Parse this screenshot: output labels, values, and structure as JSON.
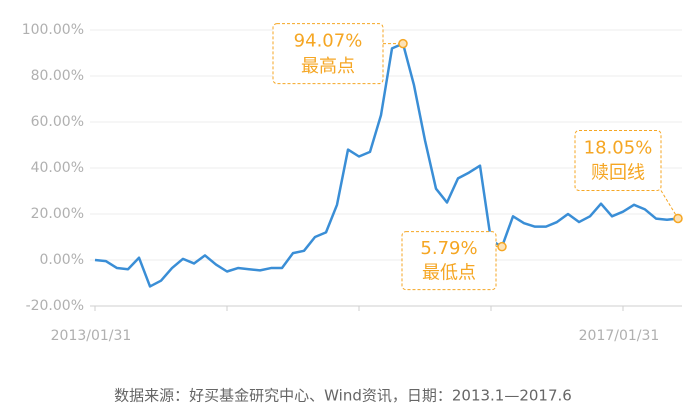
{
  "chart_data": {
    "type": "line",
    "categories": [
      "2013/01/31",
      null,
      null,
      null,
      null,
      null,
      null,
      null,
      null,
      null,
      null,
      null,
      null,
      null,
      null,
      null,
      null,
      null,
      null,
      null,
      null,
      null,
      null,
      null,
      null,
      null,
      null,
      null,
      null,
      null,
      null,
      null,
      null,
      null,
      null,
      null,
      null,
      null,
      null,
      null,
      null,
      null,
      null,
      null,
      null,
      null,
      null,
      null,
      "2017/01/31",
      null,
      null,
      null,
      null,
      null
    ],
    "series": [
      {
        "color": "#3a8ed6",
        "values": [
          0,
          -0.5,
          -3.5,
          -4,
          1,
          -11.5,
          -9,
          -3.5,
          0.5,
          -1.5,
          2,
          -2,
          -5,
          -3.5,
          -4,
          -4.5,
          -3.5,
          -3.5,
          3,
          4,
          10,
          12,
          24,
          48,
          45,
          47,
          63,
          92,
          94.07,
          76,
          52,
          31,
          25,
          35.5,
          38,
          41,
          8.5,
          5.79,
          19,
          16,
          14.5,
          14.5,
          16.5,
          20,
          16.5,
          19,
          24.5,
          19,
          21,
          24,
          22,
          18,
          17.5,
          18.05
        ],
        "value_labels": [
          null,
          null,
          null,
          null,
          null,
          null,
          null,
          null,
          null,
          null,
          null,
          null,
          null,
          null,
          null,
          null,
          null,
          null,
          null,
          null,
          null,
          null,
          null,
          null,
          null,
          null,
          null,
          null,
          "94.07%",
          null,
          null,
          null,
          null,
          null,
          null,
          null,
          null,
          "5.79%",
          null,
          null,
          null,
          null,
          null,
          null,
          null,
          null,
          null,
          null,
          null,
          null,
          null,
          null,
          null,
          "18.05%"
        ],
        "annotations": [
          null,
          null,
          null,
          null,
          null,
          null,
          null,
          null,
          null,
          null,
          null,
          null,
          null,
          null,
          null,
          null,
          null,
          null,
          null,
          null,
          null,
          null,
          null,
          null,
          null,
          null,
          null,
          null,
          "最高点",
          null,
          null,
          null,
          null,
          null,
          null,
          null,
          null,
          "最低点",
          null,
          null,
          null,
          null,
          null,
          null,
          null,
          null,
          null,
          null,
          null,
          null,
          null,
          null,
          null,
          "赎回线"
        ]
      }
    ],
    "ylim": [
      -20,
      100
    ],
    "yticks": [
      {
        "value": -20,
        "label": "-20.00%"
      },
      {
        "value": 0,
        "label": "0.00%"
      },
      {
        "value": 20,
        "label": "20.00%"
      },
      {
        "value": 40,
        "label": "40.00%"
      },
      {
        "value": 60,
        "label": "60.00%"
      },
      {
        "value": 80,
        "label": "80.00%"
      },
      {
        "value": 100,
        "label": "100.00%"
      }
    ],
    "grid": true,
    "annotation_color": "#f5a623",
    "source": "数据来源：好买基金研究中心、Wind资讯，日期：2013.1—2017.6"
  }
}
